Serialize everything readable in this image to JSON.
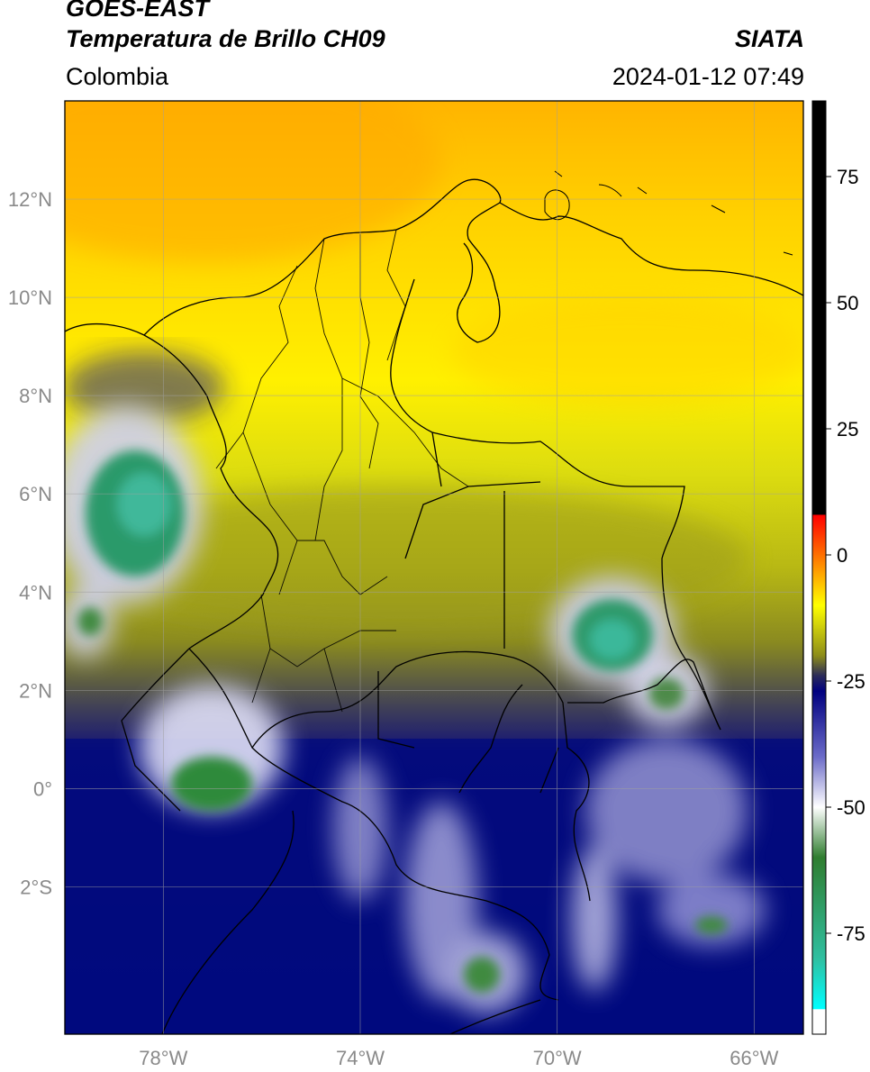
{
  "header": {
    "satellite": "GOES-EAST",
    "product": "Temperatura de Brillo CH09",
    "organization": "SIATA",
    "region": "Colombia",
    "datetime": "2024-01-12 07:49"
  },
  "map": {
    "lon_range": [
      -80,
      -65
    ],
    "lat_range": [
      -5,
      14
    ],
    "x_ticks": [
      {
        "value": -78,
        "label": "78°W"
      },
      {
        "value": -74,
        "label": "74°W"
      },
      {
        "value": -70,
        "label": "70°W"
      },
      {
        "value": -66,
        "label": "66°W"
      }
    ],
    "y_ticks": [
      {
        "value": 12,
        "label": "12°N"
      },
      {
        "value": 10,
        "label": "10°N"
      },
      {
        "value": 8,
        "label": "8°N"
      },
      {
        "value": 6,
        "label": "6°N"
      },
      {
        "value": 4,
        "label": "4°N"
      },
      {
        "value": 2,
        "label": "2°N"
      },
      {
        "value": 0,
        "label": "0°"
      },
      {
        "value": -2,
        "label": "2°S"
      }
    ],
    "grid": true
  },
  "colorbar": {
    "range": [
      -95,
      90
    ],
    "ticks": [
      {
        "value": 75,
        "label": "75"
      },
      {
        "value": 50,
        "label": "50"
      },
      {
        "value": 25,
        "label": "25"
      },
      {
        "value": 0,
        "label": "0"
      },
      {
        "value": -25,
        "label": "-25"
      },
      {
        "value": -50,
        "label": "-50"
      },
      {
        "value": -75,
        "label": "-75"
      }
    ],
    "stops": [
      {
        "value": 90,
        "color": "#000000"
      },
      {
        "value": 8,
        "color": "#000000"
      },
      {
        "value": 7.9,
        "color": "#ff0000"
      },
      {
        "value": 0,
        "color": "#ff7000"
      },
      {
        "value": -10,
        "color": "#ffff00"
      },
      {
        "value": -20,
        "color": "#8c8c1a"
      },
      {
        "value": -24,
        "color": "#2a2a5a"
      },
      {
        "value": -27,
        "color": "#000080"
      },
      {
        "value": -40,
        "color": "#6b6bc8"
      },
      {
        "value": -50,
        "color": "#ffffff"
      },
      {
        "value": -60,
        "color": "#2f7d2f"
      },
      {
        "value": -80,
        "color": "#2fbfa0"
      },
      {
        "value": -90,
        "color": "#00ffff"
      },
      {
        "value": -90.1,
        "color": "#ffffff"
      },
      {
        "value": -95,
        "color": "#ffffff"
      }
    ]
  }
}
